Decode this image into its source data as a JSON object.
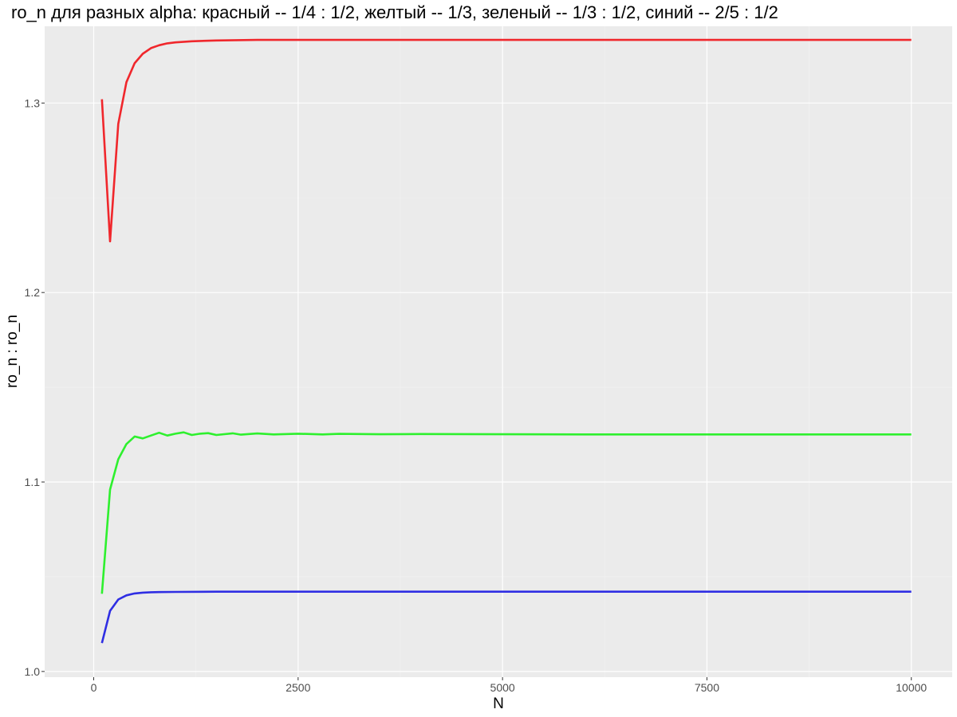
{
  "chart_data": {
    "type": "line",
    "title": "ro_n для разных alpha: красный -- 1/4 : 1/2, желтый -- 1/3, зеленый -- 1/3 : 1/2, синий -- 2/5 : 1/2",
    "xlabel": "N",
    "ylabel": "ro_n : ro_n",
    "xlim": [
      -600,
      10500
    ],
    "ylim": [
      0.997,
      1.3405
    ],
    "x_ticks": [
      0,
      2500,
      5000,
      7500,
      10000
    ],
    "x_tick_labels": [
      "0",
      "2500",
      "5000",
      "7500",
      "10000"
    ],
    "y_ticks": [
      1.0,
      1.1,
      1.2,
      1.3
    ],
    "y_tick_labels": [
      "1.0",
      "1.1",
      "1.2",
      "1.3"
    ],
    "grid": true,
    "background": "#ebebeb",
    "series": [
      {
        "color": "#f0272c",
        "points": [
          [
            100,
            1.302
          ],
          [
            200,
            1.227
          ],
          [
            300,
            1.289
          ],
          [
            400,
            1.311
          ],
          [
            500,
            1.321
          ],
          [
            600,
            1.326
          ],
          [
            700,
            1.329
          ],
          [
            800,
            1.3305
          ],
          [
            900,
            1.3315
          ],
          [
            1000,
            1.332
          ],
          [
            1200,
            1.3326
          ],
          [
            1500,
            1.333
          ],
          [
            2000,
            1.3333
          ],
          [
            3000,
            1.3333
          ],
          [
            5000,
            1.3333
          ],
          [
            7500,
            1.3333
          ],
          [
            10000,
            1.3333
          ]
        ]
      },
      {
        "color": "#2ef02e",
        "points": [
          [
            100,
            1.041
          ],
          [
            200,
            1.096
          ],
          [
            300,
            1.112
          ],
          [
            400,
            1.12
          ],
          [
            500,
            1.124
          ],
          [
            600,
            1.123
          ],
          [
            700,
            1.1245
          ],
          [
            800,
            1.126
          ],
          [
            900,
            1.1245
          ],
          [
            1000,
            1.1255
          ],
          [
            1100,
            1.1262
          ],
          [
            1200,
            1.1248
          ],
          [
            1300,
            1.1255
          ],
          [
            1400,
            1.1258
          ],
          [
            1500,
            1.1248
          ],
          [
            1700,
            1.1257
          ],
          [
            1800,
            1.125
          ],
          [
            2000,
            1.1256
          ],
          [
            2200,
            1.1251
          ],
          [
            2500,
            1.1255
          ],
          [
            2800,
            1.1251
          ],
          [
            3000,
            1.1254
          ],
          [
            3500,
            1.1252
          ],
          [
            4000,
            1.1253
          ],
          [
            5000,
            1.1252
          ],
          [
            6000,
            1.1251
          ],
          [
            7500,
            1.1251
          ],
          [
            8500,
            1.1251
          ],
          [
            10000,
            1.1251
          ]
        ]
      },
      {
        "color": "#2f2ee3",
        "points": [
          [
            100,
            1.015
          ],
          [
            200,
            1.032
          ],
          [
            300,
            1.038
          ],
          [
            400,
            1.0402
          ],
          [
            500,
            1.0412
          ],
          [
            600,
            1.0416
          ],
          [
            700,
            1.0418
          ],
          [
            800,
            1.0419
          ],
          [
            1000,
            1.042
          ],
          [
            1500,
            1.0421
          ],
          [
            3000,
            1.0421
          ],
          [
            5000,
            1.0421
          ],
          [
            7500,
            1.0421
          ],
          [
            10000,
            1.0421
          ]
        ]
      }
    ]
  }
}
